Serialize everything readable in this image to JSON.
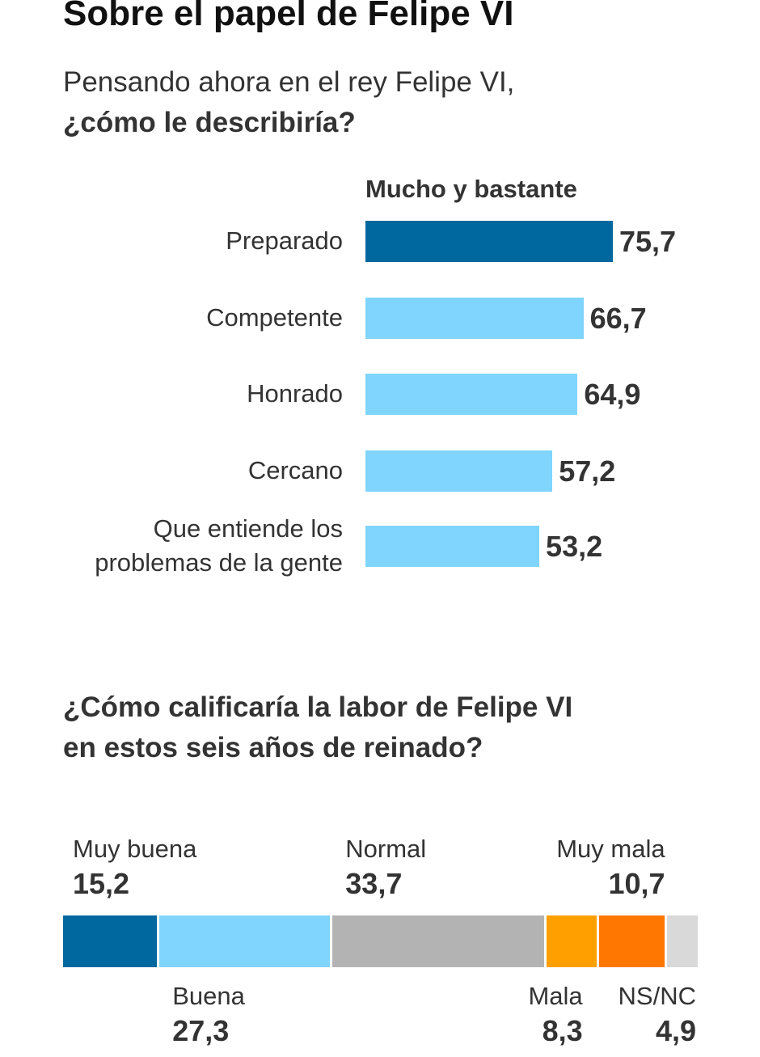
{
  "title": "Sobre el papel de Felipe VI",
  "subtitle_line1": "Pensando ahora en el rey Felipe VI,",
  "subtitle_line2": "¿cómo le describiría?",
  "bars_header": "Mucho y bastante",
  "question2_line1": "¿Cómo calificaría la labor de Felipe VI",
  "question2_line2": "en estos seis años de reinado?",
  "chart_data": [
    {
      "type": "bar",
      "orientation": "horizontal",
      "title": "Mucho y bastante",
      "categories": [
        "Preparado",
        "Competente",
        "Honrado",
        "Cercano",
        "Que entiende los problemas de la gente"
      ],
      "values": [
        75.7,
        66.7,
        64.9,
        57.2,
        53.2
      ],
      "value_labels": [
        "75,7",
        "66,7",
        "64,9",
        "57,2",
        "53,2"
      ],
      "category_lines": [
        [
          "Preparado"
        ],
        [
          "Competente"
        ],
        [
          "Honrado"
        ],
        [
          "Cercano"
        ],
        [
          "Que entiende los",
          "problemas de la gente"
        ]
      ],
      "colors": [
        "#00679f",
        "#80d5ff",
        "#80d5ff",
        "#80d5ff",
        "#80d5ff"
      ],
      "xlim": [
        0,
        100
      ]
    },
    {
      "type": "bar",
      "stacked": true,
      "orientation": "horizontal",
      "categories": [
        "Muy buena",
        "Buena",
        "Normal",
        "Mala",
        "Muy mala",
        "NS/NC"
      ],
      "values": [
        15.2,
        27.3,
        33.7,
        8.3,
        10.7,
        4.9
      ],
      "value_labels": [
        "15,2",
        "27,3",
        "33,7",
        "8,3",
        "10,7",
        "4,9"
      ],
      "colors": [
        "#00679f",
        "#80d5ff",
        "#b3b3b3",
        "#ffa000",
        "#ff7600",
        "#d9d9d9"
      ],
      "label_position": [
        "above",
        "below",
        "above",
        "below",
        "above",
        "below"
      ]
    }
  ]
}
